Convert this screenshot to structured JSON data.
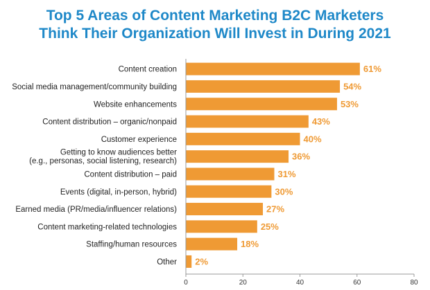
{
  "chart_data": {
    "type": "bar",
    "orientation": "horizontal",
    "title_lines": [
      "Top 5 Areas of Content Marketing B2C Marketers",
      "Think Their Organization Will Invest in During 2021"
    ],
    "categories": [
      [
        "Content creation"
      ],
      [
        "Social media management/community building"
      ],
      [
        "Website enhancements"
      ],
      [
        "Content distribution – organic/nonpaid"
      ],
      [
        "Customer experience"
      ],
      [
        "Getting to know audiences better",
        "(e.g., personas, social listening, research)"
      ],
      [
        "Content distribution – paid"
      ],
      [
        "Events (digital, in-person, hybrid)"
      ],
      [
        "Earned media (PR/media/influencer relations)"
      ],
      [
        "Content marketing-related technologies"
      ],
      [
        "Staffing/human resources"
      ],
      [
        "Other"
      ]
    ],
    "values": [
      61,
      54,
      53,
      43,
      40,
      36,
      31,
      30,
      27,
      25,
      18,
      2
    ],
    "value_labels": [
      "61%",
      "54%",
      "53%",
      "43%",
      "40%",
      "36%",
      "31%",
      "30%",
      "27%",
      "25%",
      "18%",
      "2%"
    ],
    "xlim": [
      0,
      80
    ],
    "xticks": [
      "0",
      "20",
      "40",
      "60",
      "80"
    ],
    "bar_color": "#ef9a34",
    "label_color": "#ef9a34",
    "title_color": "#1e88c8",
    "grid": false
  }
}
